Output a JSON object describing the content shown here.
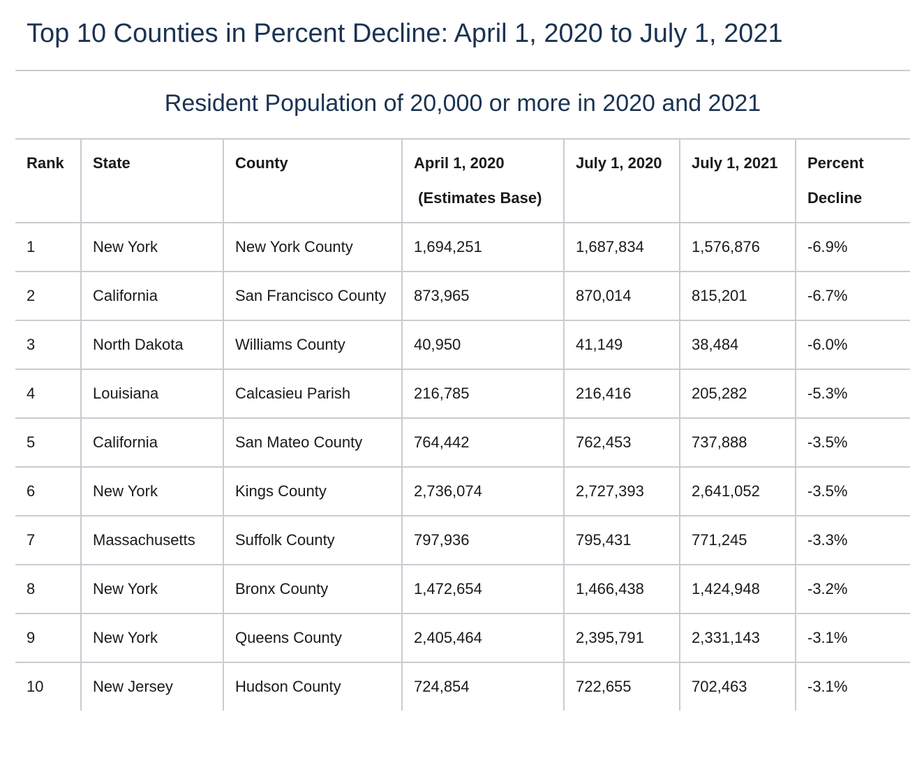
{
  "header": {
    "title": "Top 10 Counties in Percent Decline: April 1, 2020 to July 1, 2021"
  },
  "table": {
    "caption": "Resident Population of 20,000 or more in 2020 and 2021",
    "columns": [
      {
        "line1": "Rank",
        "line2": ""
      },
      {
        "line1": "State",
        "line2": ""
      },
      {
        "line1": "County",
        "line2": ""
      },
      {
        "line1": "April 1, 2020",
        "line2": " (Estimates Base)"
      },
      {
        "line1": "July 1, 2020",
        "line2": ""
      },
      {
        "line1": "July 1, 2021",
        "line2": ""
      },
      {
        "line1": "Percent",
        "line2": "Decline"
      }
    ],
    "rows": [
      {
        "rank": "1",
        "state": "New York",
        "county": "New York County",
        "apr2020": "1,694,251",
        "jul2020": "1,687,834",
        "jul2021": "1,576,876",
        "decline": "-6.9%"
      },
      {
        "rank": "2",
        "state": "California",
        "county": "San Francisco County",
        "apr2020": "873,965",
        "jul2020": "870,014",
        "jul2021": "815,201",
        "decline": "-6.7%"
      },
      {
        "rank": "3",
        "state": "North Dakota",
        "county": "Williams County",
        "apr2020": "40,950",
        "jul2020": "41,149",
        "jul2021": "38,484",
        "decline": "-6.0%"
      },
      {
        "rank": "4",
        "state": "Louisiana",
        "county": "Calcasieu Parish",
        "apr2020": "216,785",
        "jul2020": "216,416",
        "jul2021": "205,282",
        "decline": "-5.3%"
      },
      {
        "rank": "5",
        "state": "California",
        "county": "San Mateo County",
        "apr2020": "764,442",
        "jul2020": "762,453",
        "jul2021": "737,888",
        "decline": "-3.5%"
      },
      {
        "rank": "6",
        "state": "New York",
        "county": "Kings County",
        "apr2020": "2,736,074",
        "jul2020": "2,727,393",
        "jul2021": "2,641,052",
        "decline": "-3.5%"
      },
      {
        "rank": "7",
        "state": "Massachusetts",
        "county": "Suffolk County",
        "apr2020": "797,936",
        "jul2020": "795,431",
        "jul2021": "771,245",
        "decline": "-3.3%"
      },
      {
        "rank": "8",
        "state": "New York",
        "county": "Bronx County",
        "apr2020": "1,472,654",
        "jul2020": "1,466,438",
        "jul2021": "1,424,948",
        "decline": "-3.2%"
      },
      {
        "rank": "9",
        "state": "New York",
        "county": "Queens County",
        "apr2020": "2,405,464",
        "jul2020": "2,395,791",
        "jul2021": "2,331,143",
        "decline": "-3.1%"
      },
      {
        "rank": "10",
        "state": "New Jersey",
        "county": "Hudson County",
        "apr2020": "724,854",
        "jul2020": "722,655",
        "jul2021": "702,463",
        "decline": "-3.1%"
      }
    ]
  }
}
